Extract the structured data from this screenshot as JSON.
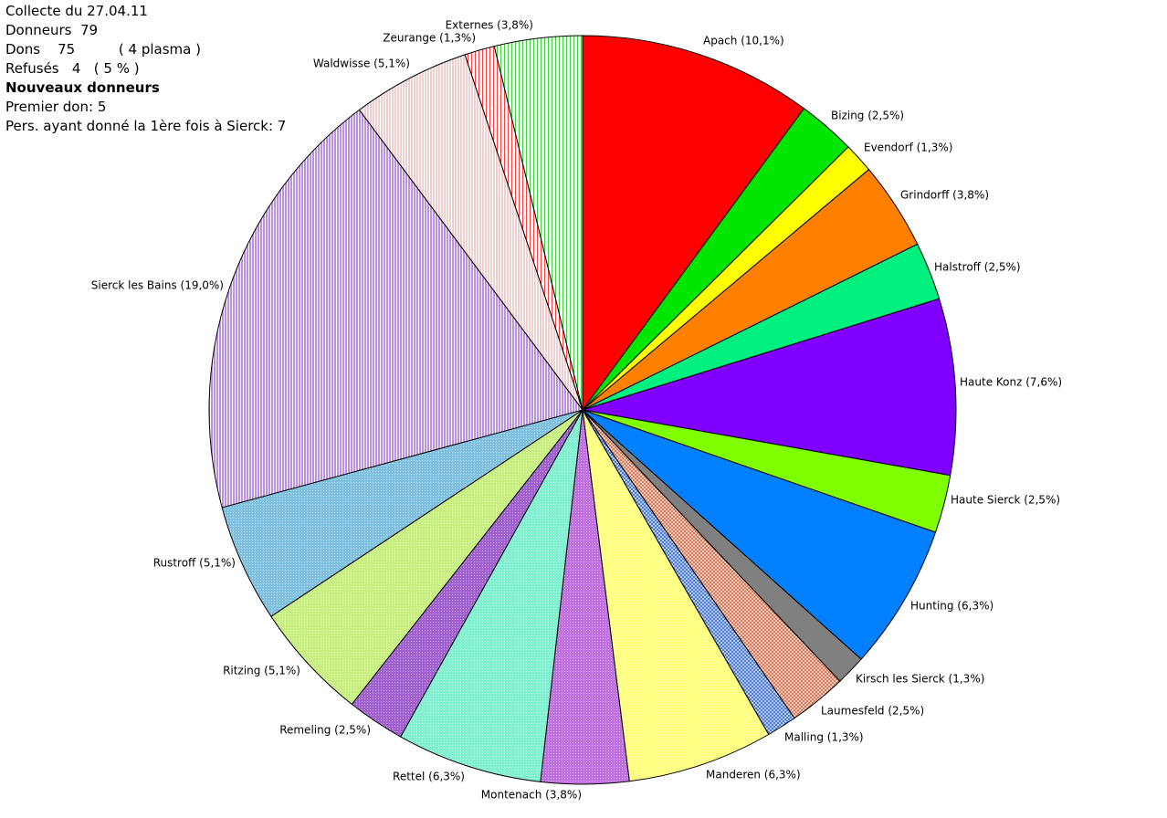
{
  "info": {
    "line1": "Collecte du 27.04.11",
    "line2": "Donneurs  79",
    "line3": "Dons    75          ( 4 plasma )",
    "line4": "Refusés   4   ( 5 % )",
    "line5": "Nouveaux donneurs",
    "line6": "Premier don: 5",
    "line7": "Pers. ayant donné la 1ère fois à Sierck: 7"
  },
  "chart_data": {
    "type": "pie",
    "start": "12 o'clock",
    "direction": "clockwise",
    "slices": [
      {
        "label": "Apach (10,1%)",
        "value": 10.1,
        "color": "#ff0000",
        "pattern": "solid"
      },
      {
        "label": "Bizing (2,5%)",
        "value": 2.5,
        "color": "#00e600",
        "pattern": "solid"
      },
      {
        "label": "Evendorf (1,3%)",
        "value": 1.3,
        "color": "#ffff00",
        "pattern": "solid"
      },
      {
        "label": "Grindorff (3,8%)",
        "value": 3.8,
        "color": "#ff8000",
        "pattern": "solid"
      },
      {
        "label": "Halstroff (2,5%)",
        "value": 2.5,
        "color": "#00f080",
        "pattern": "solid"
      },
      {
        "label": "Haute Konz (7,6%)",
        "value": 7.6,
        "color": "#8000ff",
        "pattern": "solid"
      },
      {
        "label": "Haute Sierck (2,5%)",
        "value": 2.5,
        "color": "#80ff00",
        "pattern": "solid"
      },
      {
        "label": "Hunting (6,3%)",
        "value": 6.3,
        "color": "#0080ff",
        "pattern": "solid"
      },
      {
        "label": "Kirsch les Sierck (1,3%)",
        "value": 1.3,
        "color": "#808080",
        "pattern": "solid"
      },
      {
        "label": "Laumesfeld (2,5%)",
        "value": 2.5,
        "color": "#d97a5a",
        "pattern": "crosshatch"
      },
      {
        "label": "Malling (1,3%)",
        "value": 1.3,
        "color": "#4a7ad9",
        "pattern": "crosshatch"
      },
      {
        "label": "Manderen (6,3%)",
        "value": 6.3,
        "color": "#ffff80",
        "pattern": "dotted"
      },
      {
        "label": "Montenach (3,8%)",
        "value": 3.8,
        "color": "#c070e0",
        "pattern": "dotted"
      },
      {
        "label": "Rettel (6,3%)",
        "value": 6.3,
        "color": "#80f0d0",
        "pattern": "dotted"
      },
      {
        "label": "Remeling (2,5%)",
        "value": 2.5,
        "color": "#a060d0",
        "pattern": "dotted"
      },
      {
        "label": "Ritzing (5,1%)",
        "value": 5.1,
        "color": "#c8f080",
        "pattern": "dotted"
      },
      {
        "label": "Rustroff (5,1%)",
        "value": 5.1,
        "color": "#80c0e0",
        "pattern": "dotted"
      },
      {
        "label": "Sierck les Bains (19,0%)",
        "value": 19.0,
        "color": "#c090e0",
        "pattern": "vertical"
      },
      {
        "label": "Waldwisse (5,1%)",
        "value": 5.1,
        "color": "#f0d0d0",
        "pattern": "vertical"
      },
      {
        "label": "Zeurange (1,3%)",
        "value": 1.3,
        "color": "#ff4040",
        "pattern": "vertical-sparse"
      },
      {
        "label": "Externes (3,8%)",
        "value": 3.8,
        "color": "#40d040",
        "pattern": "vertical-sparse"
      }
    ]
  }
}
